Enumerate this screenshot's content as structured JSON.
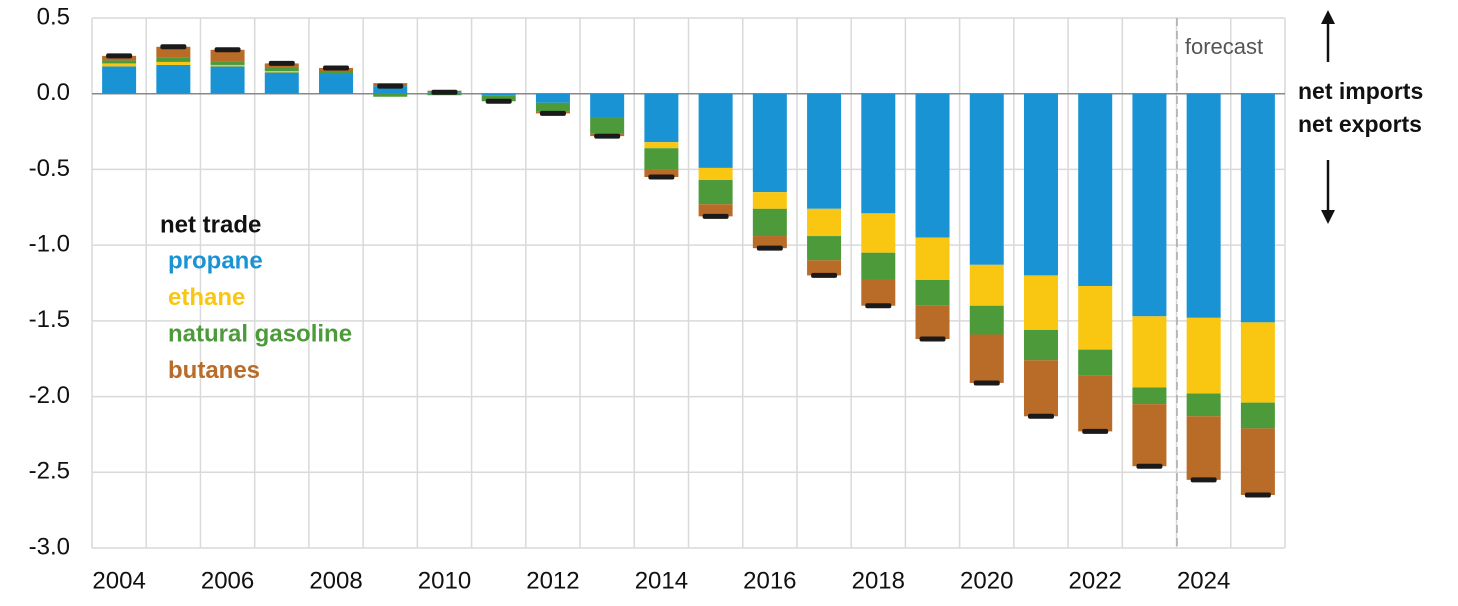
{
  "chart_data": {
    "type": "bar",
    "stacked": true,
    "grid": true,
    "categories": [
      "2004",
      null,
      "2006",
      null,
      "2008",
      null,
      "2010",
      null,
      "2012",
      null,
      "2014",
      null,
      "2016",
      null,
      "2018",
      null,
      "2020",
      null,
      "2022",
      null,
      "2024",
      null
    ],
    "ylim": [
      -3.0,
      0.5
    ],
    "yticks": [
      0.5,
      {
        "value": 0,
        "label": "0.0"
      },
      -0.5,
      {
        "value": -1,
        "label": "-1.0"
      },
      -1.5,
      {
        "value": -2,
        "label": "-2.0"
      },
      -2.5,
      {
        "value": -3,
        "label": "-3.0"
      }
    ],
    "series": [
      {
        "name": "propane",
        "color": "#1a93d4",
        "values": [
          0.18,
          0.19,
          0.18,
          0.14,
          0.13,
          0.05,
          0.01,
          -0.01,
          -0.06,
          -0.16,
          -0.32,
          -0.49,
          -0.65,
          -0.76,
          -0.79,
          -0.95,
          -1.13,
          -1.2,
          -1.27,
          -1.47,
          -1.48,
          -1.51
        ]
      },
      {
        "name": "ethane",
        "color": "#f9c712",
        "values": [
          0.02,
          0.02,
          0.01,
          0.01,
          0,
          0,
          0,
          0,
          0,
          0,
          -0.04,
          -0.08,
          -0.11,
          -0.18,
          -0.26,
          -0.28,
          -0.27,
          -0.36,
          -0.42,
          -0.47,
          -0.5,
          -0.53
        ]
      },
      {
        "name": "natural gasoline",
        "color": "#4c9a3a",
        "values": [
          0.02,
          0.03,
          0.02,
          0.02,
          0.02,
          -0.02,
          -0.01,
          -0.04,
          -0.06,
          -0.1,
          -0.14,
          -0.16,
          -0.18,
          -0.16,
          -0.18,
          -0.17,
          -0.19,
          -0.2,
          -0.17,
          -0.11,
          -0.15,
          -0.17
        ]
      },
      {
        "name": "butanes",
        "color": "#b96b28",
        "values": [
          0.03,
          0.07,
          0.08,
          0.03,
          0.02,
          0.02,
          0.01,
          0,
          -0.01,
          -0.02,
          -0.05,
          -0.08,
          -0.08,
          -0.1,
          -0.17,
          -0.22,
          -0.32,
          -0.37,
          -0.37,
          -0.41,
          -0.42,
          -0.44
        ]
      }
    ],
    "net": {
      "name": "net trade",
      "color": "#1a1a1a",
      "values": [
        0.25,
        0.31,
        0.29,
        0.2,
        0.17,
        0.05,
        0.01,
        -0.05,
        -0.13,
        -0.28,
        -0.55,
        -0.81,
        -1.02,
        -1.2,
        -1.4,
        -1.62,
        -1.91,
        -2.13,
        -2.23,
        -2.46,
        -2.55,
        -2.65
      ]
    },
    "annotations": {
      "forecast": "forecast",
      "up": "net imports",
      "down": "net exports"
    }
  }
}
